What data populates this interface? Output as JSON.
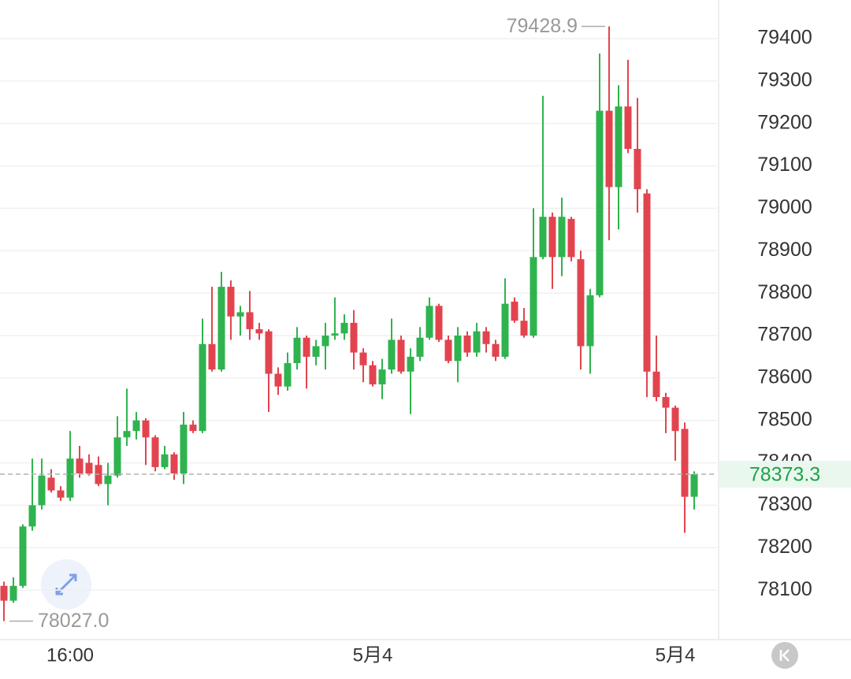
{
  "chart_data": {
    "type": "candlestick",
    "categories": [
      null,
      null,
      null,
      null,
      null,
      null,
      null,
      "16:00",
      null,
      null,
      null,
      null,
      null,
      null,
      null,
      null,
      null,
      null,
      null,
      null,
      null,
      null,
      null,
      null,
      null,
      null,
      null,
      null,
      null,
      null,
      null,
      null,
      null,
      null,
      null,
      null,
      null,
      null,
      null,
      "5月4",
      null,
      null,
      null,
      null,
      null,
      null,
      null,
      null,
      null,
      null,
      null,
      null,
      null,
      null,
      null,
      null,
      null,
      null,
      null,
      null,
      null,
      null,
      null,
      null,
      null,
      null,
      null,
      null,
      null,
      null,
      null,
      "5月4",
      null,
      null
    ],
    "open": [
      78110,
      78075,
      78110,
      78250,
      78300,
      78365,
      78335,
      78318,
      78410,
      78400,
      78395,
      78350,
      78370,
      78460,
      78475,
      78500,
      78460,
      78390,
      78420,
      78375,
      78490,
      78475,
      78680,
      78620,
      78815,
      78745,
      78755,
      78715,
      78710,
      78610,
      78580,
      78635,
      78695,
      78650,
      78675,
      78700,
      78705,
      78730,
      78660,
      78630,
      78585,
      78620,
      78690,
      78615,
      78650,
      78695,
      78770,
      78690,
      78640,
      78700,
      78660,
      78710,
      78680,
      78650,
      78780,
      78735,
      78700,
      78885,
      78980,
      78885,
      78975,
      78880,
      78675,
      78795,
      79230,
      79050,
      79240,
      79140,
      79035,
      78615,
      78555,
      78530,
      78480,
      78320
    ],
    "high": [
      78120,
      78130,
      78255,
      78410,
      78410,
      78385,
      78345,
      78475,
      78440,
      78420,
      78415,
      78400,
      78510,
      78575,
      78520,
      78505,
      78465,
      78440,
      78425,
      78520,
      78500,
      78740,
      78815,
      78850,
      78830,
      78770,
      78805,
      78730,
      78715,
      78625,
      78660,
      78720,
      78700,
      78690,
      78730,
      78790,
      78750,
      78760,
      78670,
      78640,
      78645,
      78740,
      78700,
      78670,
      78720,
      78790,
      78775,
      78700,
      78720,
      78710,
      78730,
      78720,
      78690,
      78835,
      78790,
      78765,
      79000,
      79265,
      78990,
      79025,
      78980,
      78900,
      78810,
      79365,
      79428.9,
      79290,
      79350,
      79260,
      79045,
      78700,
      78565,
      78535,
      78495,
      78380
    ],
    "low": [
      78027,
      78070,
      78105,
      78240,
      78290,
      78330,
      78310,
      78310,
      78365,
      78370,
      78345,
      78300,
      78365,
      78440,
      78455,
      78395,
      78380,
      78385,
      78360,
      78350,
      78470,
      78470,
      78615,
      78615,
      78690,
      78700,
      78690,
      78690,
      78520,
      78560,
      78570,
      78620,
      78575,
      78630,
      78620,
      78690,
      78690,
      78620,
      78590,
      78580,
      78550,
      78610,
      78610,
      78515,
      78640,
      78690,
      78685,
      78635,
      78590,
      78650,
      78650,
      78660,
      78640,
      78645,
      78730,
      78695,
      78695,
      78880,
      78810,
      78840,
      78875,
      78620,
      78610,
      78790,
      78925,
      78950,
      79130,
      78990,
      78555,
      78545,
      78470,
      78405,
      78235,
      78290
    ],
    "close": [
      78075,
      78110,
      78250,
      78300,
      78370,
      78335,
      78318,
      78410,
      78375,
      78375,
      78350,
      78370,
      78460,
      78475,
      78500,
      78460,
      78390,
      78420,
      78375,
      78490,
      78475,
      78680,
      78620,
      78815,
      78745,
      78755,
      78715,
      78705,
      78610,
      78580,
      78635,
      78695,
      78650,
      78675,
      78700,
      78705,
      78730,
      78660,
      78630,
      78585,
      78620,
      78690,
      78615,
      78650,
      78695,
      78770,
      78690,
      78640,
      78700,
      78660,
      78710,
      78680,
      78650,
      78775,
      78735,
      78700,
      78885,
      78980,
      78885,
      78980,
      78885,
      78675,
      78795,
      79230,
      79050,
      79240,
      79140,
      79045,
      78615,
      78555,
      78530,
      78475,
      78320,
      78373.3
    ],
    "up_color": "#2fb34f",
    "down_color": "#e2444f",
    "ylim": [
      77987,
      79491
    ],
    "yticks": [
      78100,
      78200,
      78300,
      78400,
      78500,
      78600,
      78700,
      78800,
      78900,
      79000,
      79100,
      79200,
      79300,
      79400
    ],
    "grid": true,
    "last_price": 78373.3,
    "max_label": 79428.9,
    "min_label": {
      "value": 78027,
      "label": "78027.0"
    }
  }
}
